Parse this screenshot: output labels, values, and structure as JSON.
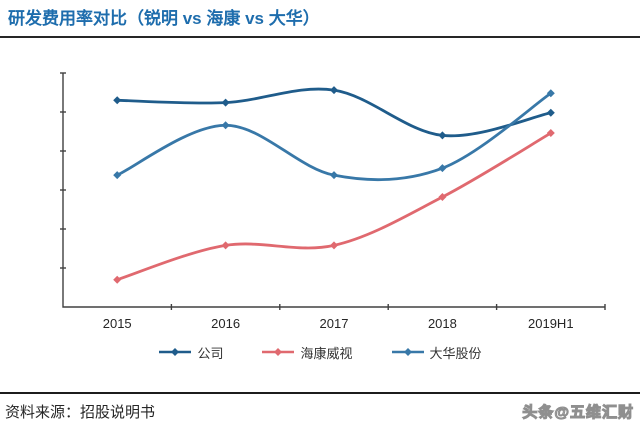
{
  "header": {
    "title": "研发费用率对比（锐明 vs 海康 vs 大华）",
    "title_color": "#1E6DAD",
    "underline_color": "#262626"
  },
  "chart_data": {
    "type": "line",
    "title": "研发费用率对比（锐明 vs 海康 vs 大华）",
    "categories": [
      "2015",
      "2016",
      "2017",
      "2018",
      "2019H1"
    ],
    "series": [
      {
        "name": "公司",
        "color": "#1F5C8B",
        "values": [
          26.5,
          26.2,
          27.8,
          22.0,
          24.9
        ]
      },
      {
        "name": "海康威视",
        "color": "#E0696F",
        "values": [
          3.5,
          7.9,
          7.9,
          14.1,
          22.3
        ]
      },
      {
        "name": "大华股份",
        "color": "#3878A8",
        "values": [
          16.9,
          23.3,
          16.9,
          17.8,
          27.4
        ]
      }
    ],
    "xlabel": "",
    "ylabel": "",
    "ylim": [
      0,
      30
    ],
    "y_tick_step": 5,
    "y_tick_labels_visible": false,
    "x_tick_labels_visible": true,
    "grid": false,
    "line_style": "smooth",
    "marker": "diamond",
    "legend_position": "bottom",
    "axis_color": "#404040"
  },
  "footer": {
    "source": "资料来源：招股说明书",
    "watermark": "头条@五维汇财"
  }
}
